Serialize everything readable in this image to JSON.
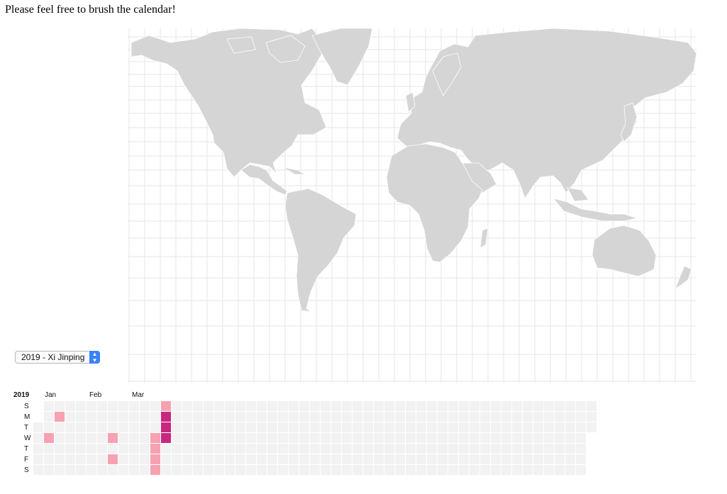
{
  "page": {
    "heading": "Please feel free to brush the calendar!"
  },
  "map": {
    "land_color": "#d5d5d5",
    "border_color": "#ffffff",
    "grid_color": "#e6e6e6",
    "country_borders_visible": true,
    "projection": "mercator"
  },
  "selector": {
    "selected": "2019 - Xi Jinping",
    "arrow_icon": "up-down-chevron-icon"
  },
  "calendar": {
    "year": "2019",
    "months": [
      "Jan",
      "Feb",
      "Mar"
    ],
    "weekdays": [
      "S",
      "M",
      "T",
      "W",
      "T",
      "F",
      "S"
    ],
    "empty_color": "#f2f2f2",
    "level_colors": {
      "1": "#f7a1b1",
      "2": "#c7277e"
    },
    "highlighted_days": [
      {
        "week": 1,
        "weekday": 3,
        "level": 1
      },
      {
        "week": 2,
        "weekday": 1,
        "level": 1
      },
      {
        "week": 7,
        "weekday": 3,
        "level": 1
      },
      {
        "week": 7,
        "weekday": 5,
        "level": 1
      },
      {
        "week": 11,
        "weekday": 3,
        "level": 1
      },
      {
        "week": 11,
        "weekday": 4,
        "level": 1
      },
      {
        "week": 11,
        "weekday": 5,
        "level": 1
      },
      {
        "week": 11,
        "weekday": 6,
        "level": 1
      },
      {
        "week": 12,
        "weekday": 0,
        "level": 1
      },
      {
        "week": 12,
        "weekday": 1,
        "level": 2
      },
      {
        "week": 12,
        "weekday": 2,
        "level": 2
      },
      {
        "week": 12,
        "weekday": 3,
        "level": 2
      }
    ]
  }
}
